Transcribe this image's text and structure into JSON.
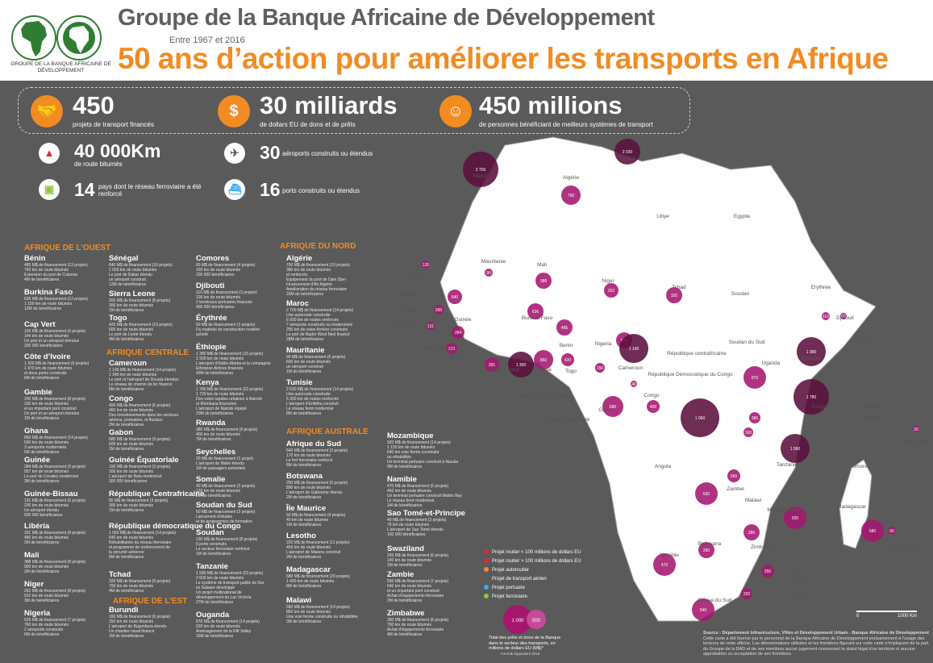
{
  "header": {
    "title": "Groupe de la Banque Africaine de Développement",
    "period": "Entre 1967 et 2016",
    "subtitle": "50 ans d’action pour améliorer les transports en Afrique",
    "logo_caption": "GROUPE DE LA BANQUE AFRICAINE DE DÉVELOPPEMENT",
    "logo_ring_text": "BANQUE AFRICAINE DE DÉVELOPPEMENT"
  },
  "stats": {
    "projects": {
      "value": "450",
      "label": "projets de transport financés",
      "icon": "handshake-icon"
    },
    "money": {
      "value": "30 milliards",
      "label": "de dollars EU de dons et de prêts",
      "icon": "dollar-icon"
    },
    "people": {
      "value": "450 millions",
      "label": "de personnes bénéficiant de meilleurs systèmes de transport",
      "icon": "people-icon"
    },
    "roads": {
      "value": "40 000Km",
      "label": "de route bitumés",
      "icon": "road-icon"
    },
    "airports": {
      "value": "30",
      "label": "aéroports construits ou étendus",
      "icon": "plane-icon"
    },
    "rail": {
      "value": "14",
      "label": "pays dont le réseau ferroviaire a été renforcé",
      "icon": "train-icon"
    },
    "ports": {
      "value": "16",
      "label": "ports construits ou étendus",
      "icon": "ship-icon"
    }
  },
  "regions": {
    "ouest": "AFRIQUE DE L’OUEST",
    "nord": "AFRIQUE DU NORD",
    "centrale": "AFRIQUE CENTRALE",
    "est": "AFRIQUE DE L’EST",
    "australe": "AFRIQUE AUSTRALE"
  },
  "countries": [
    {
      "name": "Bénin",
      "lines": [
        "485 M$ de financement (13 projets)",
        "760 km de route bitumés",
        "Extension du port de Cotonou",
        "4M de bénéficiaires"
      ]
    },
    {
      "name": "Burkina Faso",
      "lines": [
        "636 M$ de financement (12 projets)",
        "1 150 km de route bitumés",
        "12M de bénéficiaires"
      ]
    },
    {
      "name": "Cap Vert",
      "lines": [
        "120 M$ de financement (6 projets)",
        "144 km de route bitumés",
        "Un port et un aéroport étendus",
        "200 000 bénéficiaires"
      ]
    },
    {
      "name": "Côte d’Ivoire",
      "lines": [
        "1 300 M$ de financement (9 projets)",
        "1 470 km de route bitumés",
        "et deux ponts construits",
        "6M de bénéficiaires"
      ]
    },
    {
      "name": "Gambie",
      "lines": [
        "200 M$ de financement (8 projets)",
        "336 km de route bitumés",
        "et un important pont construit",
        "Un port et un aéroport étendus",
        "1M de bénéficiaires"
      ]
    },
    {
      "name": "Ghana",
      "lines": [
        "860 M$ de financement (14 projets)",
        "590 km de route bitumés",
        "3 aéroports modernisés",
        "6M de bénéficiaires"
      ]
    },
    {
      "name": "Guinée",
      "lines": [
        "284 M$ de financement (9 projets)",
        "957 km de route bitumés",
        "Le port de Conakry modernisé",
        "3M de bénéficiaires"
      ]
    },
    {
      "name": "Guinée-Bissau",
      "lines": [
        "131 M$ de financement (5 projets)",
        "230 km de route bitumés",
        "Un aéroport étendu",
        "500 000 bénéficiaires"
      ]
    },
    {
      "name": "Libéria",
      "lines": [
        "391 M$ de financement (8 projets)",
        "480 km de route bitumés",
        "2M de bénéficiaires"
      ]
    },
    {
      "name": "Mali",
      "lines": [
        "388 M$ de financement (8 projets)",
        "900 km de route bitumés",
        "2M de bénéficiaires"
      ]
    },
    {
      "name": "Niger",
      "lines": [
        "262 M$ de financement (8 projets)",
        "912 km de route bitumés",
        "3M de bénéficiaires"
      ]
    },
    {
      "name": "Nigeria",
      "lines": [
        "525 M$ de financement (7 projets)",
        "760 km de route bitumés",
        "2 aéroports construits",
        "6M de bénéficiaires"
      ]
    },
    {
      "name": "Sénégal",
      "lines": [
        "640 M$ de financement (18 projets)",
        "1 550 km de route bitumés",
        "Le port de Dakar étendu",
        "un aéroport construit",
        "12M de bénéficiaires"
      ]
    },
    {
      "name": "Sierra Leone",
      "lines": [
        "200 M$ de financement (8 projets)",
        "300 km de route bitumés",
        "1M de bénéficiaires"
      ]
    },
    {
      "name": "Togo",
      "lines": [
        "420 M$ de financement (10 projets)",
        "600 km de route bitumés",
        "Le port de Lomé étendu",
        "4M de bénéficiaires"
      ]
    },
    {
      "name": "Cameroun",
      "lines": [
        "1 140 M$ de financement (14 projets)",
        "1 340 km de route bitumés",
        "Le port et l’aéroport de Douala étendus",
        "Le réseau de chemin de fer financé",
        "8M de bénéficiaires"
      ]
    },
    {
      "name": "Congo",
      "lines": [
        "400 M$ de financement (6 projets)",
        "460 km de route bitumés",
        "Des investissements dans les secteurs",
        "aériens, portuaires, et fluviaux",
        "2M de bénéficiaires"
      ]
    },
    {
      "name": "Gabon",
      "lines": [
        "680 M$ de financement (9 projets)",
        "600 km de route bitumés",
        "1M de bénéficiaires"
      ]
    },
    {
      "name": "Guinée Équatoriale",
      "lines": [
        "150 M$ de financement (3 projets)",
        "200 km de route bitumés",
        "L’aéroport de Bata modernisé",
        "300 000 bénéficiaires"
      ]
    },
    {
      "name": "République Centrafricaine",
      "lines": [
        "80 M$ de financement (3 projets)",
        "300 km de route bitumés",
        "1M de bénéficiaires"
      ]
    },
    {
      "name": "République démocratique du Congo",
      "lines": [
        "1 060 M$ de financement (14 projets)",
        "640 km de route bitumés",
        "Réhabilitation du réseau ferroviaire",
        "et programme de renforcement de",
        "la sécurité aérienne",
        "6M de bénéficiaires"
      ]
    },
    {
      "name": "Tchad",
      "lines": [
        "320 M$ de financement (9 projets)",
        "700 km de route bitumés",
        "4M de bénéficiaires"
      ]
    },
    {
      "name": "Burundi",
      "lines": [
        "160 M$ de financement (6 projets)",
        "250 km de route bitumés",
        "L’aéroport de Bujumbura étendu",
        "Un chantier naval financé",
        "1M de bénéficiaires"
      ]
    },
    {
      "name": "Comores",
      "lines": [
        "60 M$ de financement (4 projets)",
        "160 km de route bitumés",
        "200 000 bénéficiaires"
      ]
    },
    {
      "name": "Djibouti",
      "lines": [
        "110 M$ de financement (3 projets)",
        "100 km de route bitumés",
        "2 terminaux portuaires financés",
        "400 000 bénéficiaires"
      ]
    },
    {
      "name": "Érythrée",
      "lines": [
        "60 M$ de financement (2 projets)",
        "Du matériel de construction routière",
        "acheté"
      ]
    },
    {
      "name": "Éthiopie",
      "lines": [
        "1 380 M$ de financement (15 projets)",
        "2 300 km de route bitumés",
        "L’aéroport d’Addis-Abeba et la compagnie",
        "Ethiopian Airlines financés",
        "40M de bénéficiaires"
      ]
    },
    {
      "name": "Kenya",
      "lines": [
        "1 780 M$ de financement (22 projets)",
        "1 720 km de route bitumés",
        "Des voies rapides urbaines à Nairobi",
        "et Mombasa financées",
        "L’aéroport de Nairobi équipé",
        "20M de bénéficiaires"
      ]
    },
    {
      "name": "Rwanda",
      "lines": [
        "380 M$ de financement (9 projets)",
        "400 km de route bitumés",
        "7M de bénéficiaires"
      ]
    },
    {
      "name": "Seychelles",
      "lines": [
        "20 M$ de financement (1 projet)",
        "L’aéroport de Mahé étendu",
        "1M de passagers potentiels"
      ]
    },
    {
      "name": "Somalie",
      "lines": [
        "40 M$ de financement (2 projets)",
        "120 km de route bitumés",
        "2M de bénéficiaires"
      ]
    },
    {
      "name": "Soudan du Sud",
      "lines": [
        "60 M$ de financement (3 projets)",
        "Lancement d’études",
        "et de programmes de formation"
      ]
    },
    {
      "name": "Soudan",
      "lines": [
        "130 M$ de financement (8 projets)",
        "6 ports construits",
        "Le secteur ferroviaire renforcé",
        "1M de bénéficiaires"
      ]
    },
    {
      "name": "Tanzanie",
      "lines": [
        "1 580 M$ de financement (23 projets)",
        "2 600 km de route bitumés",
        "Le système de transport public de Dar",
        "es Salaam développé",
        "Un projet multinational de",
        "développement du Lac Victoria",
        "27M de bénéficiaires"
      ]
    },
    {
      "name": "Ouganda",
      "lines": [
        "870 M$ de financement (14 projets)",
        "930 km de route bitumés",
        "Aménagement de la Rift Valley",
        "16M de bénéficiaires"
      ]
    },
    {
      "name": "Algérie",
      "lines": [
        "760 M$ de financement (10 projets)",
        "380 km de route bitumés",
        "et renforcés",
        "Equipement du port de Djen Djen",
        "Financement d’Air Algérie",
        "Amélioration du réseau ferroviaire",
        "20M de bénéficiaires"
      ]
    },
    {
      "name": "Maroc",
      "lines": [
        "2 700 M$ de financement (14 projets)",
        "Une autoroute construite",
        "6 000 km de routes renforcés",
        "7 aéroports construits ou modernisés",
        "250 km de voies ferrées construits",
        "Le port de Nador West Med financé",
        "28M de bénéficiaires"
      ]
    },
    {
      "name": "Mauritanie",
      "lines": [
        "90 M$ de financement (6 projets)",
        "600 km de route bitumés",
        "un aéroport construit",
        "1M de bénéficiaires"
      ]
    },
    {
      "name": "Tunisie",
      "lines": [
        "2 030 M$ de financement (14 projets)",
        "Une autoroute construite",
        "5 300 km de routes renforcés",
        "L’aéroport d’Enfidha construit",
        "Le réseau ferré modernisé",
        "8M de bénéficiaires"
      ]
    },
    {
      "name": "Afrique du Sud",
      "lines": [
        "540 M$ de financement (3 projets)",
        "170 km de route bitumés",
        "Le fret ferroviaire renforcé",
        "8M de bénéficiaires"
      ]
    },
    {
      "name": "Botswana",
      "lines": [
        "250 M$ de financement (6 projets)",
        "890 km de route bitumés",
        "L’aéroport de Gaborone étendu",
        "2M de bénéficiaires"
      ]
    },
    {
      "name": "Île Maurice",
      "lines": [
        "60 M$ de financement (4 projets)",
        "40 km de route bitumés",
        "1M de bénéficiaires"
      ]
    },
    {
      "name": "Lesotho",
      "lines": [
        "220 M$ de financement (11 projets)",
        "450 km de route bitumés",
        "L’aéroport de Maseru construit",
        "2M de bénéficiaires"
      ]
    },
    {
      "name": "Madagascar",
      "lines": [
        "680 M$ de financement (20 projets)",
        "1 400 km de route bitumés",
        "6M de bénéficiaires"
      ]
    },
    {
      "name": "Malawi",
      "lines": [
        "560 M$ de financement (14 projets)",
        "850 km de route bitumés",
        "Une voie ferrée construite ou réhabilitée",
        "3M de bénéficiaires"
      ]
    },
    {
      "name": "Mozambique",
      "lines": [
        "920 M$ de financement (14 projets)",
        "1 150 km de route bitumés",
        "640 km voie ferrée construite",
        "ou réhabilitée",
        "Un terminal portuaire construit à Nacala",
        "9M de bénéficiaires"
      ]
    },
    {
      "name": "Namibie",
      "lines": [
        "470 M$ de financement (5 projets)",
        "450 km de route bitumés",
        "Un terminal portuaire construit Walvis Bay",
        "Le réseau ferré modernisé",
        "1M de bénéficiaires"
      ]
    },
    {
      "name": "Sao Tomé-et-Principe",
      "lines": [
        "40 M$ de financement (2 projets)",
        "78 km de route bitumés",
        "L’aéroport de Sao Tomé étendu",
        "100 000 bénéficiaires"
      ]
    },
    {
      "name": "Swaziland",
      "lines": [
        "250 M$ de financement (6 projets)",
        "140 km de route bitumés",
        "1M de bénéficiaires"
      ]
    },
    {
      "name": "Zambie",
      "lines": [
        "550 M$ de financement (7 projets)",
        "640 km de route bitumés",
        "et un important pont construit",
        "Achat d’équipements ferroviaire",
        "2M de bénéficiaires"
      ]
    },
    {
      "name": "Zimbabwe",
      "lines": [
        "280 M$ de financement (6 projets)",
        "700 km de route bitumés",
        "Achat d’équipements ferroviaire",
        "4M de bénéficiaires"
      ]
    }
  ],
  "map": {
    "country_labels": [
      "Maroc",
      "Tunisie",
      "Algérie",
      "Libye",
      "Egypte",
      "Mauritanie",
      "Mali",
      "Niger",
      "Tchad",
      "Soudan",
      "Erythrée",
      "Djibouti",
      "Somalie",
      "Ethiopie",
      "Soudan du Sud",
      "République centrafricaine",
      "Cameroun",
      "Nigeria",
      "Benin",
      "Togo",
      "Ghana",
      "Burkina Faso",
      "Côte d’Ivoire",
      "Libéria",
      "Sierra Leone",
      "Guinée",
      "Guinée-Bissau",
      "Gambie",
      "Sénégal",
      "Cap Vert",
      "Sao Tomé-et-Principe",
      "Guinée équatoriale",
      "Gabon",
      "Congo",
      "République Démocratique du Congo",
      "Uganda",
      "Kenya",
      "Rwanda",
      "Burundi",
      "Tanzanie",
      "Seychelles",
      "Comores",
      "Angola",
      "Zambie",
      "Malawi",
      "Mozambique",
      "Madagascar",
      "Île Maurice",
      "Zimbabwe",
      "Namibie",
      "Botswana",
      "Swaziland",
      "Lesotho",
      "Afrique du Sud"
    ],
    "bubble_values": [
      "2 700",
      "2 030",
      "760",
      "120",
      "90",
      "388",
      "262",
      "320",
      "60",
      "110",
      "40",
      "1 380",
      "640",
      "200",
      "131",
      "284",
      "636",
      "485",
      "525",
      "1 140",
      "200",
      "391",
      "1 300",
      "860",
      "420",
      "150",
      "680",
      "400",
      "1 060",
      "870",
      "1 780",
      "380",
      "160",
      "1 580",
      "20",
      "560",
      "550",
      "920",
      "280",
      "680",
      "470",
      "250",
      "250",
      "540",
      "220",
      "60"
    ],
    "scale_label": "1000 Km",
    "scale_zero": "0"
  },
  "legend": {
    "items": [
      {
        "label": "Projet routier < 100 millions de dollars EU",
        "color": "#e0282d"
      },
      {
        "label": "Projet routier > 100 millions de dollars EU",
        "color": "#e0282d"
      },
      {
        "label": "Projet autoroutier",
        "color": "#f28b22"
      },
      {
        "label": "Projet de transport aérien",
        "color": "#5a5a5a"
      },
      {
        "label": "Projet portuaire",
        "color": "#3fa9f5"
      },
      {
        "label": "Projet ferroviaire",
        "color": "#8cc63f"
      }
    ],
    "bubble_a": "1 000",
    "bubble_b": "500",
    "caption": "Total des prêts et dons de la Banque dans le secteur des transports, en millions de dollars EU (M$)*",
    "footnote": "*Arrondi équivalent 2016"
  },
  "source": {
    "title": "Source : Département Infrastructure, Villes et Développement Urbain - Banque Africaine de Développement",
    "text": "Cette carte a été fournie par le personnel de la Banque Africaine de Développement exclusivement à l’usage des lecteurs de cette affiche. Les dénominations utilisées et les frontières figurant sur cette carte n’impliquent de la part du Groupe de la BAD et de ses membres aucun jugement concernant le statut légal d’un territoire ni aucune approbation ou acceptation de ses frontières."
  },
  "colors": {
    "accent": "#f28b22",
    "background": "#5a5a5a",
    "bubble": "#a5176f",
    "bubble_light": "#c64b96",
    "bubble_dark": "#5b0f3c",
    "road": "#e0282d"
  }
}
